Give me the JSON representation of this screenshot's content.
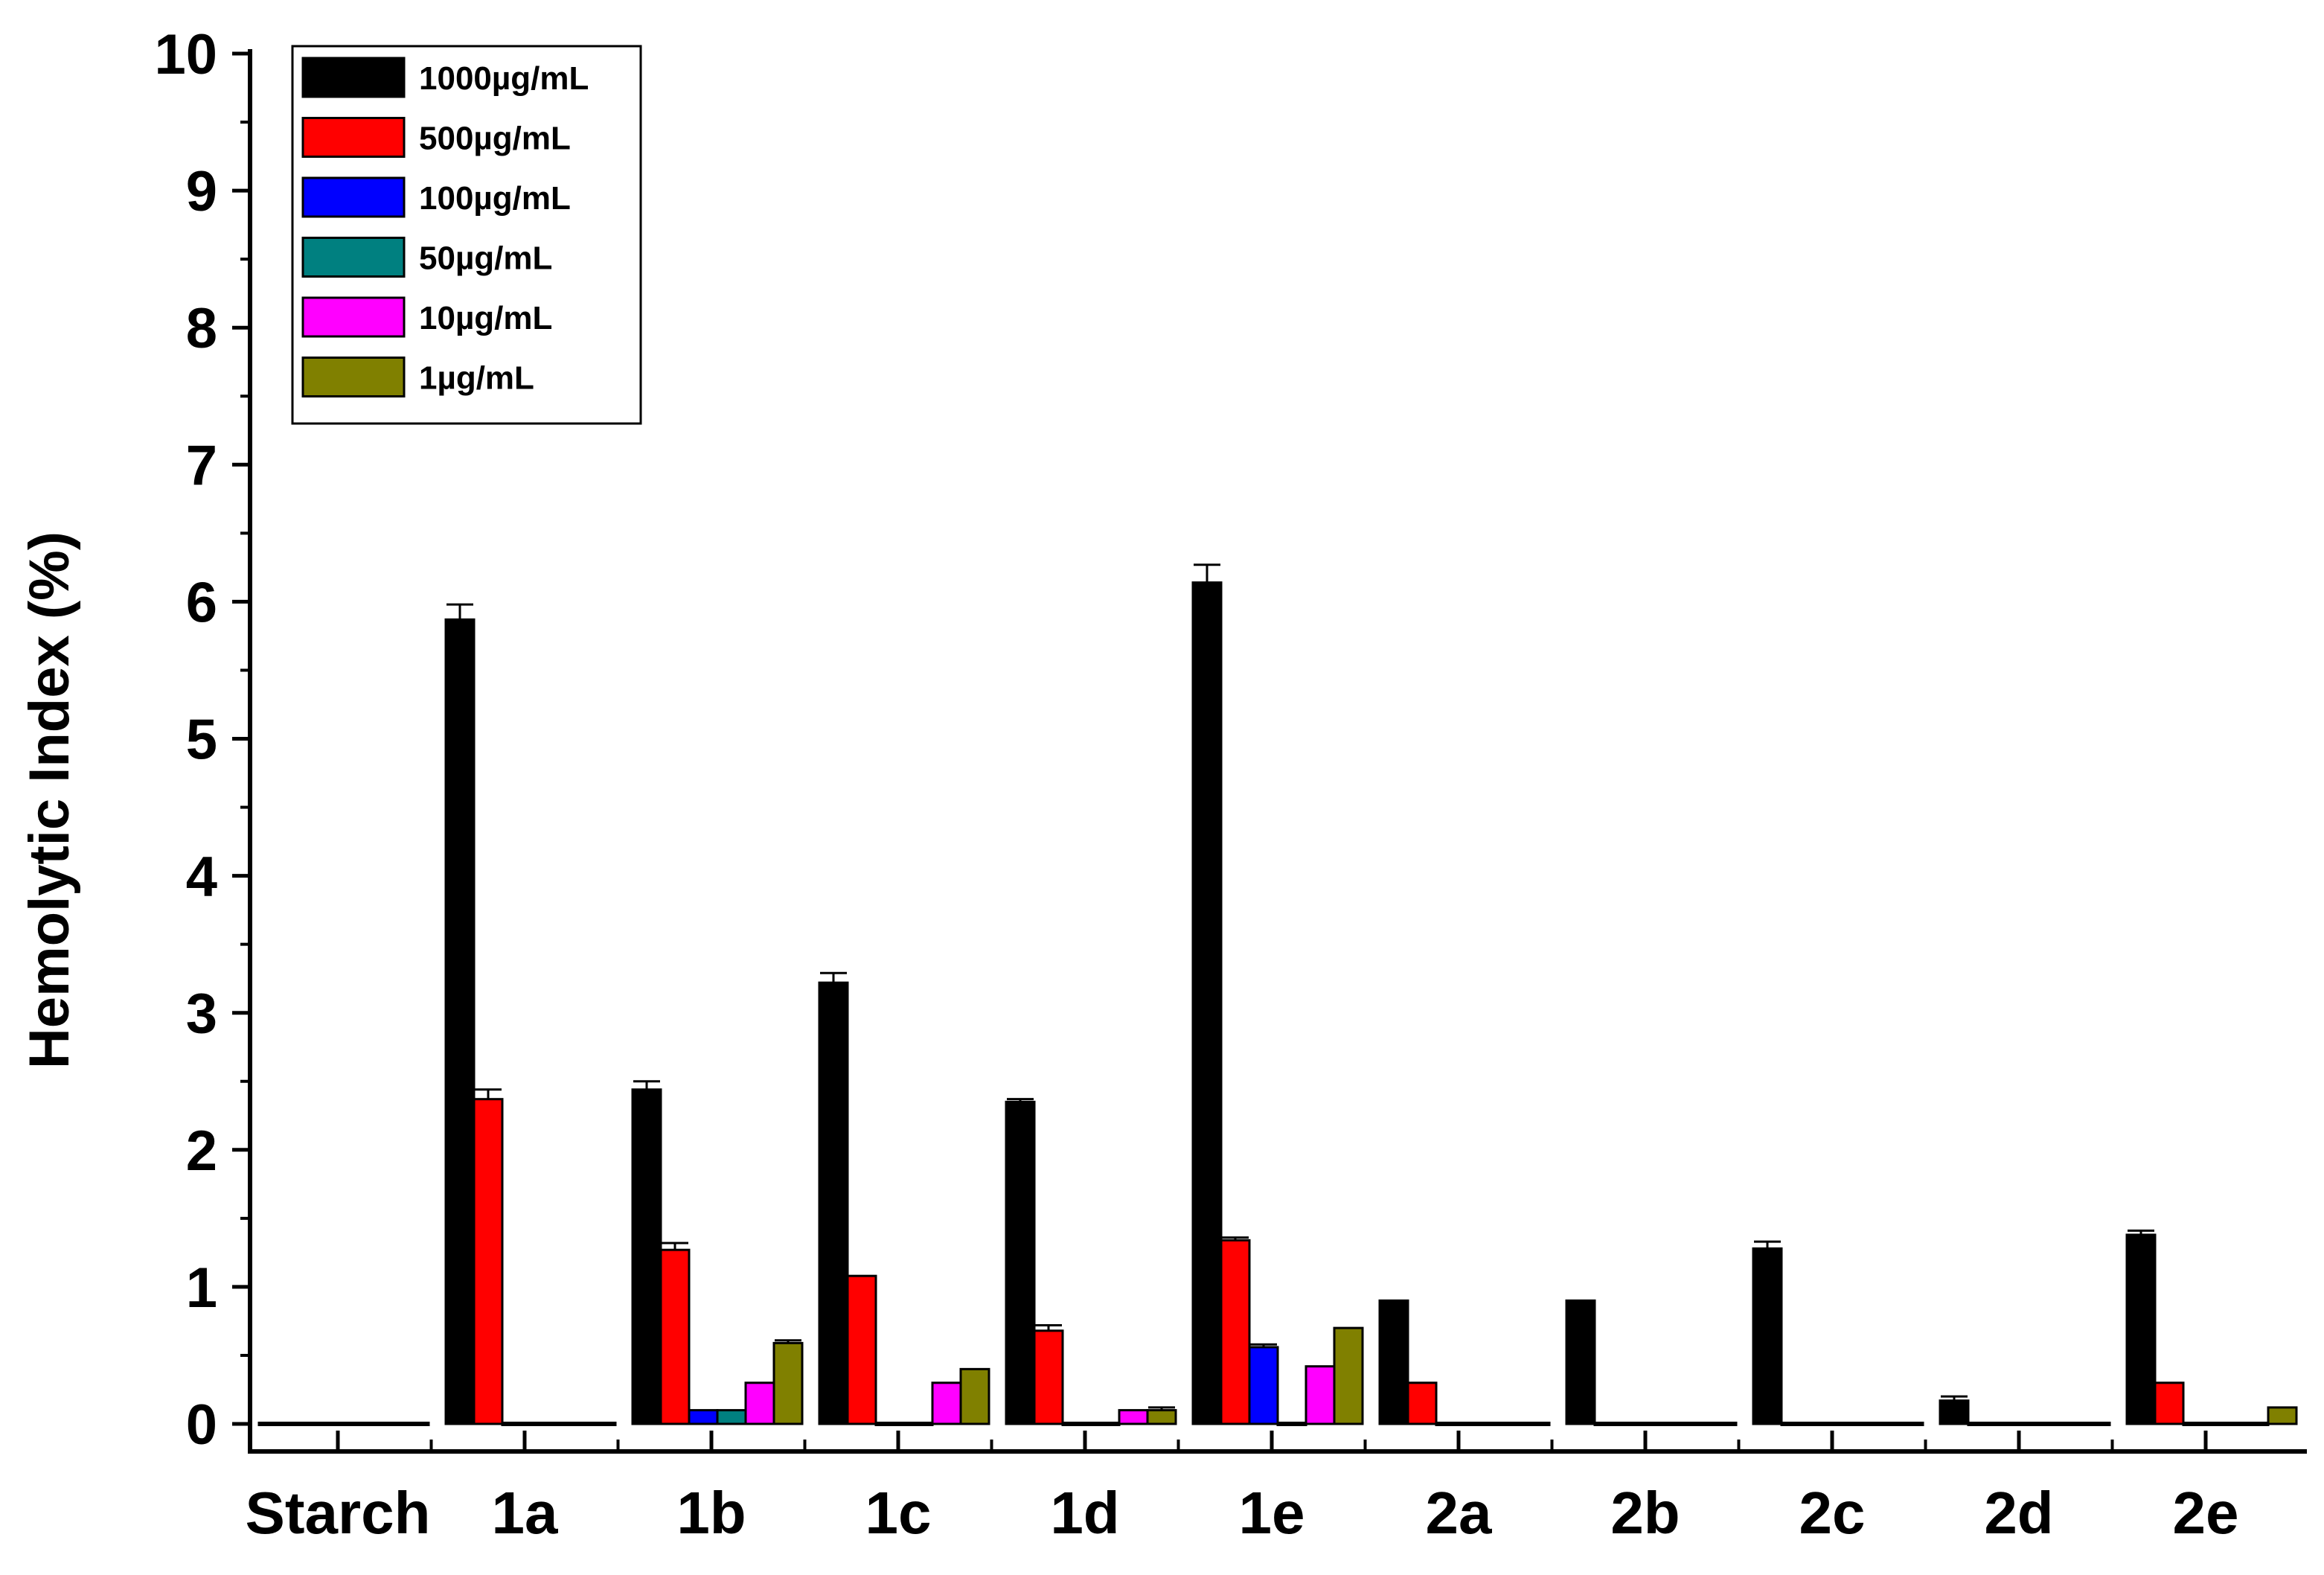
{
  "chart_data": {
    "type": "bar",
    "title": "",
    "xlabel": "",
    "ylabel": "Hemolytic Index (%)",
    "ylim": [
      0,
      10
    ],
    "yticks": [
      "0",
      "1",
      "2",
      "3",
      "4",
      "5",
      "6",
      "7",
      "8",
      "9",
      "10"
    ],
    "grid": false,
    "legend_position": "top-left",
    "categories": [
      "Starch",
      "1a",
      "1b",
      "1c",
      "1d",
      "1e",
      "2a",
      "2b",
      "2c",
      "2d",
      "2e"
    ],
    "series": [
      {
        "name": "1000µg/mL",
        "color": "#000000",
        "values": [
          0.0,
          5.87,
          2.44,
          3.22,
          2.35,
          6.14,
          0.9,
          0.9,
          1.28,
          0.17,
          1.38
        ],
        "errors": [
          0,
          0.11,
          0.06,
          0.07,
          0.02,
          0.13,
          0,
          0,
          0.05,
          0.03,
          0.03
        ]
      },
      {
        "name": "500µg/mL",
        "color": "#ff0000",
        "values": [
          0.0,
          2.37,
          1.27,
          1.08,
          0.68,
          1.34,
          0.3,
          0.0,
          0.0,
          0.0,
          0.3
        ],
        "errors": [
          0,
          0.07,
          0.05,
          0,
          0.04,
          0.02,
          0,
          0,
          0,
          0,
          0
        ]
      },
      {
        "name": "100µg/mL",
        "color": "#0000ff",
        "values": [
          0.0,
          0.0,
          0.1,
          0.0,
          0.0,
          0.56,
          0.0,
          0.0,
          0.0,
          0.0,
          0.0
        ],
        "errors": [
          0,
          0,
          0,
          0,
          0,
          0.02,
          0,
          0,
          0,
          0,
          0
        ]
      },
      {
        "name": "50µg/mL",
        "color": "#008080",
        "values": [
          0.0,
          0.0,
          0.1,
          0.0,
          0.0,
          0.0,
          0.0,
          0.0,
          0.0,
          0.0,
          0.0
        ],
        "errors": [
          0,
          0,
          0,
          0,
          0,
          0,
          0,
          0,
          0,
          0,
          0
        ]
      },
      {
        "name": "10µg/mL",
        "color": "#ff00ff",
        "values": [
          0.0,
          0.0,
          0.3,
          0.3,
          0.1,
          0.42,
          0.0,
          0.0,
          0.0,
          0.0,
          0.0
        ],
        "errors": [
          0,
          0,
          0,
          0,
          0,
          0,
          0,
          0,
          0,
          0,
          0
        ]
      },
      {
        "name": "1µg/mL",
        "color": "#808000",
        "values": [
          0.0,
          0.0,
          0.59,
          0.4,
          0.1,
          0.7,
          0.0,
          0.0,
          0.0,
          0.0,
          0.12
        ],
        "errors": [
          0,
          0,
          0.02,
          0,
          0.02,
          0,
          0,
          0,
          0,
          0,
          0
        ]
      }
    ]
  }
}
